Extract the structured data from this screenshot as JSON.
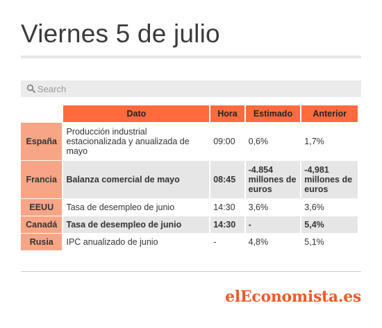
{
  "title": "Viernes 5 de julio",
  "search": {
    "placeholder": "Search"
  },
  "table": {
    "headers": [
      "Dato",
      "Hora",
      "Estimado",
      "Anterior"
    ],
    "rows": [
      {
        "country": "España",
        "dato": "Producción industrial estacionalizada y anualizada de mayo",
        "hora": "09:00",
        "estimado": "0,6%",
        "anterior": "1,7%"
      },
      {
        "country": "Francia",
        "dato": "Balanza comercial de mayo",
        "hora": "08:45",
        "estimado": "-4.854 millones de euros",
        "anterior": "-4,981 millones de euros"
      },
      {
        "country": "EEUU",
        "dato": "Tasa de desempleo de junio",
        "hora": "14:30",
        "estimado": "3,6%",
        "anterior": "3,6%"
      },
      {
        "country": "Canadá",
        "dato": "Tasa de desempleo de junio",
        "hora": "14:30",
        "estimado": "-",
        "anterior": "5,4%"
      },
      {
        "country": "Rusia",
        "dato": "IPC anualizado de junio",
        "hora": "-",
        "estimado": "4,8%",
        "anterior": "5,1%"
      }
    ]
  },
  "logo": "elEconomista.es",
  "colors": {
    "header": "#ff6b3d",
    "country_cell": "#f7a586",
    "row_shade": "#e6e6e6",
    "logo": "#f05a28"
  },
  "icons": {
    "search": "search-icon"
  }
}
